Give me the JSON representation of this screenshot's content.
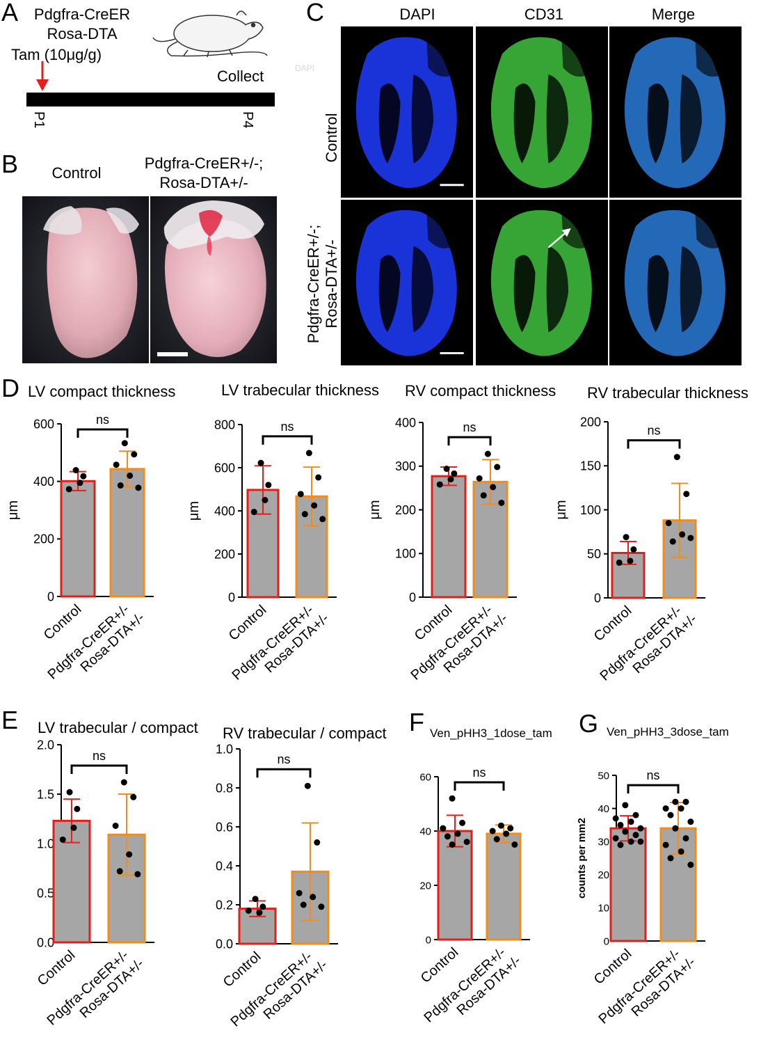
{
  "panelA": {
    "letter": "A",
    "line1": "Pdgfra-CreER",
    "line2": "Rosa-DTA",
    "tam": "Tam (10μg/g)",
    "collect": "Collect",
    "ghost": "DAPI",
    "p1": "P1",
    "p4": "P4",
    "arrow_color": "#e0201b"
  },
  "panelB": {
    "letter": "B",
    "control": "Control",
    "mut_line1": "Pdgfra-CreER+/-;",
    "mut_line2": "Rosa-DTA+/-"
  },
  "panelC": {
    "letter": "C",
    "columns": [
      "DAPI",
      "CD31",
      "Merge"
    ],
    "row_control": "Control",
    "row_mut_line1": "Pdgfra-CreER+/-;",
    "row_mut_line2": "Rosa-DTA+/-",
    "colors": {
      "dapi": "#1f3cff",
      "cd31": "#3fc23f",
      "merge": "#2a7ad8"
    }
  },
  "letters": {
    "D": "D",
    "E": "E",
    "F": "F",
    "G": "G"
  },
  "groups": [
    "Control",
    "Pdgfra-CreER+/-",
    "Rosa-DTA+/-"
  ],
  "colors": {
    "control": "#e0201b",
    "mutant": "#f28c1a",
    "bar_fill": "#a6a6a6"
  },
  "chart_data": [
    {
      "type": "bar",
      "title": "LV compact thickness",
      "ylabel": "μm",
      "categories": [
        "Control",
        "Pdgfra-CreER+/- Rosa-DTA+/-"
      ],
      "values": [
        401,
        443
      ],
      "error": [
        33,
        62
      ],
      "ylim": [
        0,
        600
      ],
      "yticks": [
        0,
        200,
        400,
        600
      ],
      "sig": "ns",
      "points": [
        [
          439,
          418,
          373,
          395
        ],
        [
          533,
          494,
          458,
          420,
          386,
          378
        ]
      ]
    },
    {
      "type": "bar",
      "title": "LV trabecular thickness",
      "ylabel": "μm",
      "categories": [
        "Control",
        "Pdgfra-CreER+/- Rosa-DTA+/-"
      ],
      "values": [
        497,
        467
      ],
      "error": [
        112,
        136
      ],
      "ylim": [
        0,
        800
      ],
      "yticks": [
        0,
        200,
        400,
        600,
        800
      ],
      "sig": "ns",
      "points": [
        [
          622,
          520,
          395,
          450
        ],
        [
          668,
          555,
          478,
          425,
          385,
          362
        ]
      ]
    },
    {
      "type": "bar",
      "title": "RV compact thickness",
      "ylabel": "μm",
      "categories": [
        "Control",
        "Pdgfra-CreER+/- Rosa-DTA+/-"
      ],
      "values": [
        277,
        264
      ],
      "error": [
        21,
        51
      ],
      "ylim": [
        0,
        400
      ],
      "yticks": [
        0,
        100,
        200,
        300,
        400
      ],
      "sig": "ns",
      "points": [
        [
          294,
          283,
          258,
          270
        ],
        [
          328,
          298,
          272,
          252,
          233,
          216
        ]
      ]
    },
    {
      "type": "bar",
      "title": "RV trabecular thickness",
      "ylabel": "μm",
      "categories": [
        "Control",
        "Pdgfra-CreER+/- Rosa-DTA+/-"
      ],
      "values": [
        51,
        88
      ],
      "error": [
        13,
        42
      ],
      "ylim": [
        0,
        200
      ],
      "yticks": [
        0,
        50,
        100,
        150,
        200
      ],
      "sig": "ns",
      "points": [
        [
          69,
          55,
          40,
          42
        ],
        [
          160,
          118,
          85,
          72,
          64,
          68
        ]
      ]
    },
    {
      "type": "bar",
      "title": "LV trabecular / compact",
      "ylabel": "",
      "categories": [
        "Control",
        "Pdgfra-CreER+/- Rosa-DTA+/-"
      ],
      "values": [
        1.23,
        1.09
      ],
      "error": [
        0.22,
        0.41
      ],
      "ylim": [
        0,
        2.0
      ],
      "yticks": [
        0.0,
        0.5,
        1.0,
        1.5,
        2.0
      ],
      "decimals": 1,
      "sig": "ns",
      "points": [
        [
          1.52,
          1.35,
          1.04,
          1.16
        ],
        [
          1.62,
          1.47,
          1.18,
          0.89,
          0.72,
          0.69
        ]
      ]
    },
    {
      "type": "bar",
      "title": "RV trabecular / compact",
      "ylabel": "",
      "categories": [
        "Control",
        "Pdgfra-CreER+/- Rosa-DTA+/-"
      ],
      "values": [
        0.18,
        0.37
      ],
      "error": [
        0.04,
        0.25
      ],
      "ylim": [
        0,
        1.0
      ],
      "yticks": [
        0.0,
        0.2,
        0.4,
        0.6,
        0.8,
        1.0
      ],
      "decimals": 1,
      "sig": "ns",
      "points": [
        [
          0.23,
          0.19,
          0.17,
          0.16
        ],
        [
          0.81,
          0.52,
          0.26,
          0.24,
          0.2,
          0.19
        ]
      ]
    },
    {
      "type": "bar",
      "title": "Ven_pHH3_1dose_tam",
      "ylabel": "",
      "categories": [
        "Control",
        "Pdgfra-CreER+/- Rosa-DTA+/-"
      ],
      "values": [
        40,
        39
      ],
      "error": [
        5.8,
        3.2
      ],
      "ylim": [
        0,
        60
      ],
      "yticks": [
        0,
        20,
        40,
        60
      ],
      "sig": "ns",
      "points": [
        [
          52,
          43,
          41,
          39,
          38,
          36,
          35
        ],
        [
          42,
          41,
          40,
          39,
          37,
          35
        ]
      ]
    },
    {
      "type": "bar",
      "title": "Ven_pHH3_3dose_tam",
      "ylabel": "counts per mm2",
      "categories": [
        "Control",
        "Pdgfra-CreER+/- Rosa-DTA+/-"
      ],
      "values": [
        34,
        34
      ],
      "error": [
        3.8,
        7.8
      ],
      "ylim": [
        0,
        50
      ],
      "yticks": [
        0,
        10,
        20,
        30,
        40,
        50
      ],
      "sig": "ns",
      "points": [
        [
          41,
          38,
          37,
          36,
          35,
          34,
          33,
          32,
          31,
          30,
          29,
          30
        ],
        [
          42,
          42,
          40,
          40,
          38,
          36,
          34,
          31,
          29,
          27,
          25,
          23
        ]
      ]
    }
  ]
}
